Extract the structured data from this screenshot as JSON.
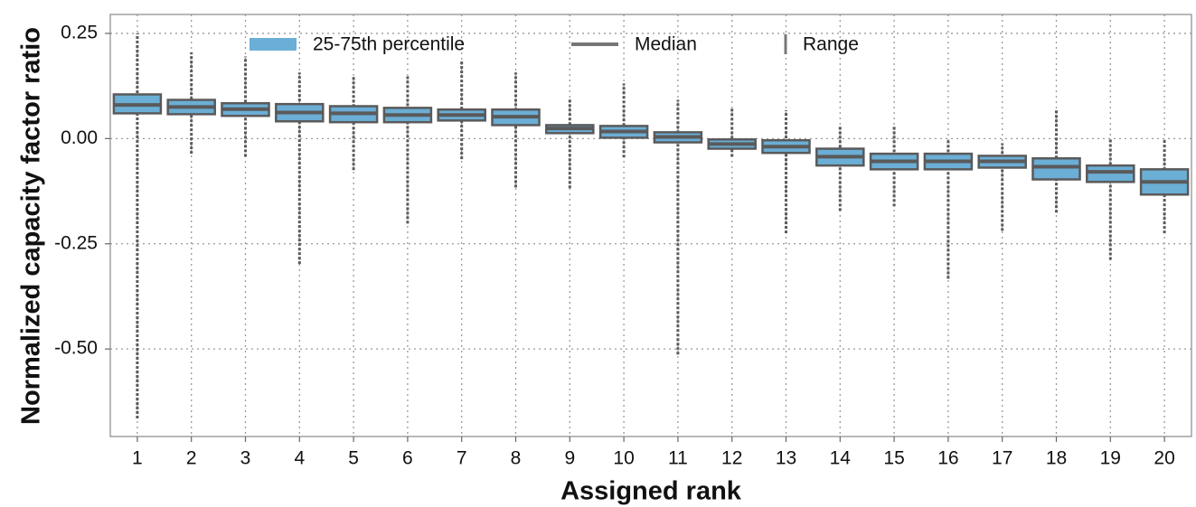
{
  "chart_data": {
    "type": "box",
    "x_label": "Assigned rank",
    "y_label": "Normalized capacity factor ratio",
    "legend": {
      "box": "25-75th percentile",
      "median": "Median",
      "range": "Range"
    },
    "box_color": "#6baed6",
    "line_color": "#5a5a5a",
    "grid": true,
    "categories": [
      "1",
      "2",
      "3",
      "4",
      "5",
      "6",
      "7",
      "8",
      "9",
      "10",
      "11",
      "12",
      "13",
      "14",
      "15",
      "16",
      "17",
      "18",
      "19",
      "20"
    ],
    "max": [
      0.25,
      0.205,
      0.195,
      0.157,
      0.15,
      0.148,
      0.187,
      0.157,
      0.097,
      0.131,
      0.092,
      0.075,
      0.067,
      0.032,
      0.028,
      0.0,
      -0.011,
      0.069,
      0.0,
      0.0
    ],
    "q3": [
      0.105,
      0.092,
      0.084,
      0.082,
      0.077,
      0.073,
      0.069,
      0.069,
      0.032,
      0.03,
      0.015,
      -0.002,
      -0.004,
      -0.024,
      -0.036,
      -0.036,
      -0.041,
      -0.047,
      -0.064,
      -0.073
    ],
    "median": [
      0.08,
      0.075,
      0.07,
      0.062,
      0.06,
      0.056,
      0.056,
      0.052,
      0.024,
      0.017,
      0.004,
      -0.013,
      -0.019,
      -0.043,
      -0.054,
      -0.054,
      -0.054,
      -0.067,
      -0.079,
      -0.103
    ],
    "q1": [
      0.06,
      0.058,
      0.054,
      0.041,
      0.039,
      0.039,
      0.043,
      0.032,
      0.013,
      0.002,
      -0.009,
      -0.024,
      -0.034,
      -0.064,
      -0.073,
      -0.073,
      -0.069,
      -0.097,
      -0.103,
      -0.133
    ],
    "min": [
      -0.665,
      -0.036,
      -0.043,
      -0.298,
      -0.075,
      -0.202,
      -0.049,
      -0.116,
      -0.118,
      -0.045,
      -0.513,
      -0.043,
      -0.225,
      -0.172,
      -0.161,
      -0.333,
      -0.219,
      -0.176,
      -0.288,
      -0.225
    ],
    "ylim": [
      -0.708,
      0.295
    ],
    "yticks": [
      0.25,
      {
        "value": 0,
        "label": "0.00"
      },
      -0.25,
      {
        "value": -0.5,
        "label": "-0.50"
      }
    ]
  }
}
